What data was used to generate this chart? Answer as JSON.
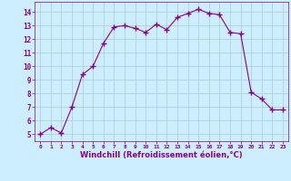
{
  "x": [
    0,
    1,
    2,
    3,
    4,
    5,
    6,
    7,
    8,
    9,
    10,
    11,
    12,
    13,
    14,
    15,
    16,
    17,
    18,
    19,
    20,
    21,
    22,
    23
  ],
  "y": [
    5.0,
    5.5,
    5.1,
    7.0,
    9.4,
    10.0,
    11.7,
    12.9,
    13.0,
    12.8,
    12.5,
    13.1,
    12.7,
    13.6,
    13.9,
    14.2,
    13.9,
    13.8,
    12.5,
    12.4,
    8.1,
    7.6,
    6.8,
    6.8
  ],
  "line_color": "#880088",
  "marker": "+",
  "marker_size": 4.0,
  "marker_lw": 1.0,
  "bg_color": "#cceeff",
  "grid_color": "#aacccc",
  "xlabel": "Windchill (Refroidissement éolien,°C)",
  "xlabel_color": "#880088",
  "tick_color": "#880088",
  "label_fontsize": 5.5,
  "xlabel_fontsize": 6.0,
  "ylim": [
    4.5,
    14.75
  ],
  "xlim": [
    -0.5,
    23.5
  ],
  "yticks": [
    5,
    6,
    7,
    8,
    9,
    10,
    11,
    12,
    13,
    14
  ],
  "xticks": [
    0,
    1,
    2,
    3,
    4,
    5,
    6,
    7,
    8,
    9,
    10,
    11,
    12,
    13,
    14,
    15,
    16,
    17,
    18,
    19,
    20,
    21,
    22,
    23
  ]
}
